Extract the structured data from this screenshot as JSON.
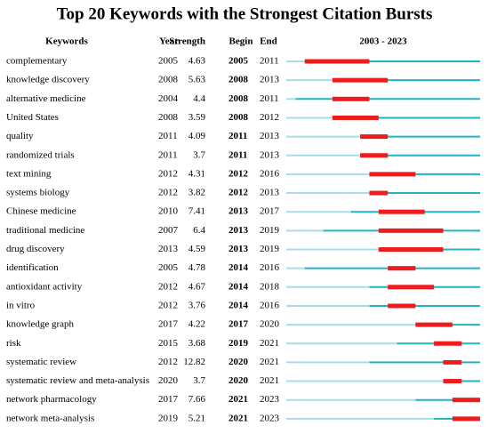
{
  "title": "Top 20 Keywords with the Strongest Citation Bursts",
  "table": {
    "columns": [
      "Keywords",
      "Year",
      "Strength",
      "Begin",
      "End"
    ],
    "timeline": {
      "label": "2003 - 2023",
      "start": 2003,
      "end": 2023
    },
    "rows": [
      [
        "complementary",
        2005,
        4.63,
        2005,
        2011
      ],
      [
        "knowledge discovery",
        2008,
        5.63,
        2008,
        2013
      ],
      [
        "alternative medicine",
        2004,
        4.4,
        2008,
        2011
      ],
      [
        "United States",
        2008,
        3.59,
        2008,
        2012
      ],
      [
        "quality",
        2011,
        4.09,
        2011,
        2013
      ],
      [
        "randomized trials",
        2011,
        3.7,
        2011,
        2013
      ],
      [
        "text mining",
        2012,
        4.31,
        2012,
        2016
      ],
      [
        "systems biology",
        2012,
        3.82,
        2012,
        2013
      ],
      [
        "Chinese medicine",
        2010,
        7.41,
        2013,
        2017
      ],
      [
        "traditional medicine",
        2007,
        6.4,
        2013,
        2019
      ],
      [
        "drug discovery",
        2013,
        4.59,
        2013,
        2019
      ],
      [
        "identification",
        2005,
        4.78,
        2014,
        2016
      ],
      [
        "antioxidant activity",
        2012,
        4.67,
        2014,
        2018
      ],
      [
        "in vitro",
        2012,
        3.76,
        2014,
        2016
      ],
      [
        "knowledge graph",
        2017,
        4.22,
        2017,
        2020
      ],
      [
        "risk",
        2015,
        3.68,
        2019,
        2021
      ],
      [
        "systematic review",
        2012,
        12.82,
        2020,
        2021
      ],
      [
        "systematic review and meta-analysis",
        2020,
        3.7,
        2020,
        2021
      ],
      [
        "network pharmacology",
        2017,
        7.66,
        2021,
        2023
      ],
      [
        "network meta-analysis",
        2019,
        5.21,
        2021,
        2023
      ]
    ]
  }
}
